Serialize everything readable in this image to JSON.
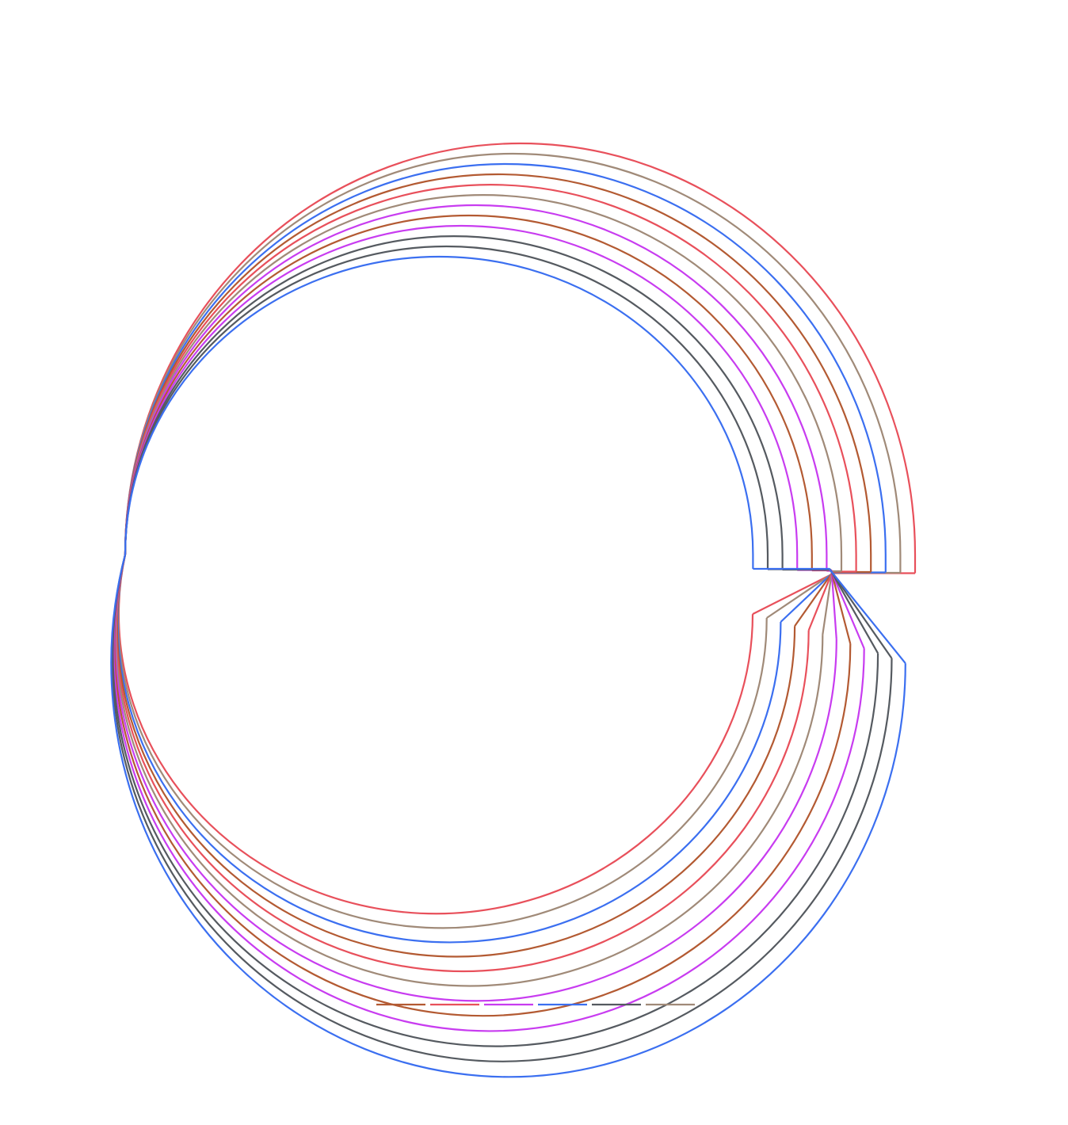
{
  "rings": {
    "colors": [
      "#e8505b",
      "#a08a78",
      "#3b6ff0",
      "#b35a32",
      "#e8505b",
      "#a08a78",
      "#c83cf0",
      "#b35a32",
      "#c83cf0",
      "#555a60",
      "#555a60",
      "#3b6ff0"
    ]
  },
  "legend": {
    "colors": [
      "#b35a32",
      "#e8505b",
      "#c83cf0",
      "#3b6ff0",
      "#555a60",
      "#a08a78"
    ]
  }
}
